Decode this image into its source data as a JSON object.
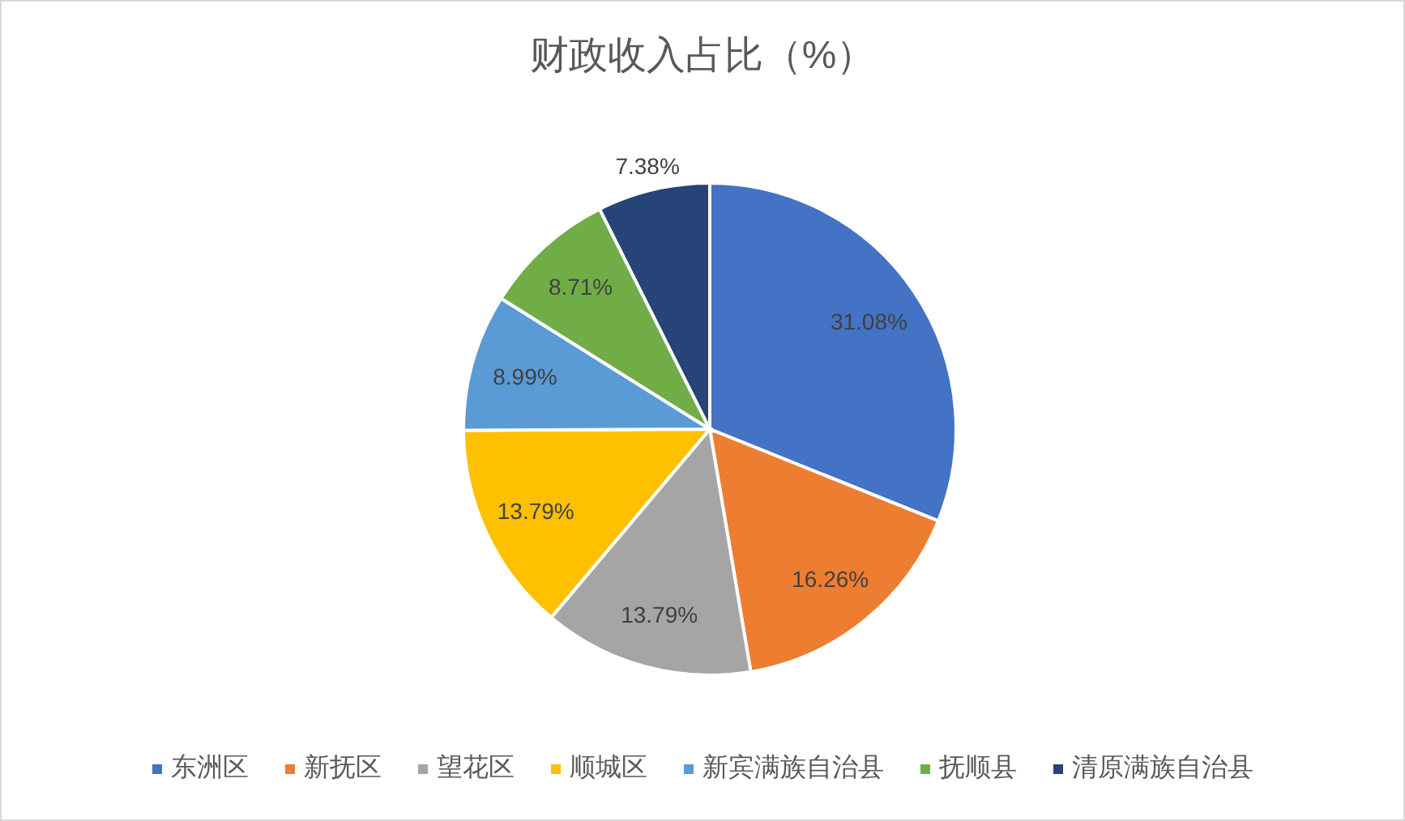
{
  "chart_data": {
    "type": "pie",
    "title": "财政收入占比（%）",
    "categories": [
      "东洲区",
      "新抚区",
      "望花区",
      "顺城区",
      "新宾满族自治县",
      "抚顺县",
      "清原满族自治县"
    ],
    "values": [
      31.08,
      16.26,
      13.79,
      13.79,
      8.99,
      8.71,
      7.38
    ],
    "colors": [
      "#4472c4",
      "#ed7d31",
      "#a5a5a5",
      "#ffc000",
      "#5b9bd5",
      "#70ad47",
      "#264478"
    ],
    "value_labels": [
      "31.08%",
      "16.26%",
      "13.79%",
      "13.79%",
      "8.99%",
      "8.71%",
      "7.38%"
    ],
    "legend": "bottom"
  }
}
